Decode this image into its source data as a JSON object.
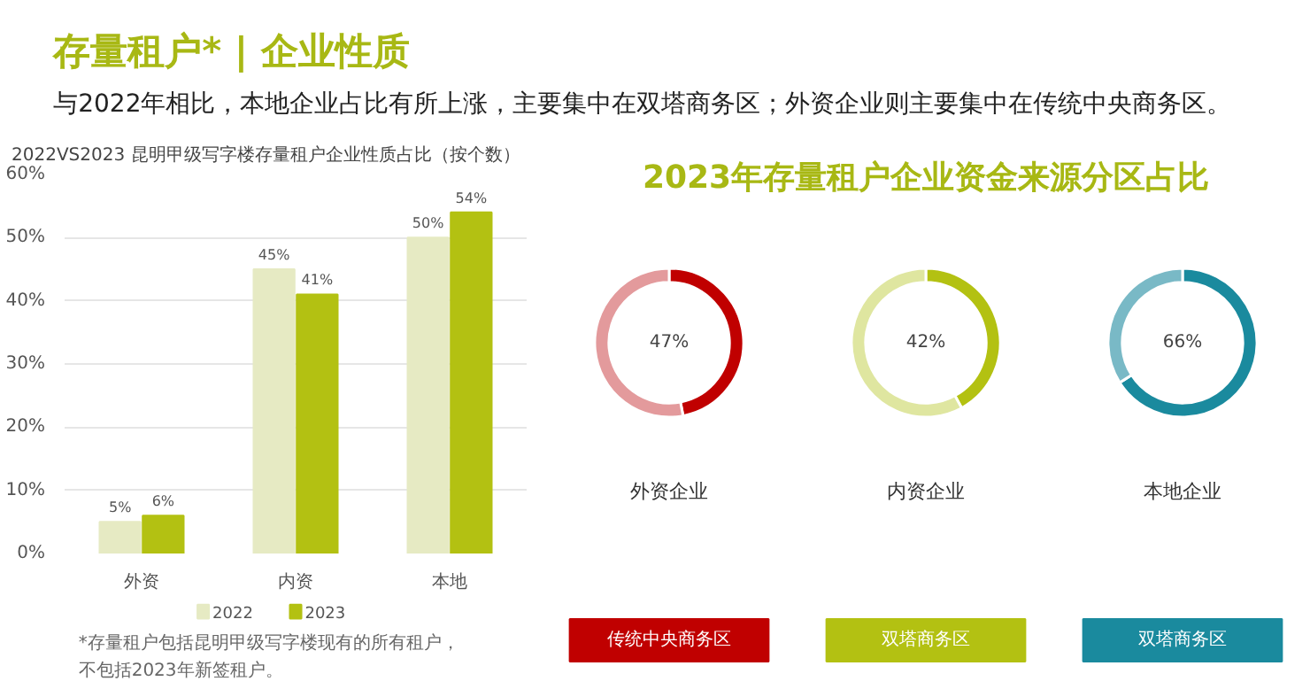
{
  "chart_data": [
    {
      "type": "other",
      "title": "存量租户*  |  企业性质",
      "subtitle": "与2022年相比，本地企业占比有所上涨，主要集中在双塔商务区；外资企业则主要集中在传统中央商务区。"
    },
    {
      "type": "bar",
      "title": "2022VS2023 昆明甲级写字楼存量租户企业性质占比（按个数）",
      "categories": [
        "外资",
        "内资",
        "本地"
      ],
      "series": [
        {
          "name": "2022",
          "color": "#e6eac3",
          "values": [
            5,
            45,
            50
          ],
          "value_labels": [
            "5%",
            "45%",
            "50%"
          ]
        },
        {
          "name": "2023",
          "color": "#b3c112",
          "values": [
            6,
            41,
            54
          ],
          "value_labels": [
            "6%",
            "41%",
            "54%"
          ]
        }
      ],
      "ylim": [
        0,
        60
      ],
      "yticks": [
        {
          "value": 0,
          "label": "0%"
        },
        {
          "value": 10,
          "label": "10%"
        },
        {
          "value": 20,
          "label": "20%"
        },
        {
          "value": 30,
          "label": "30%"
        },
        {
          "value": 40,
          "label": "40%"
        },
        {
          "value": 50,
          "label": "50%"
        },
        {
          "value": 60,
          "label": "60%"
        }
      ],
      "grid": "y",
      "legend": "bottom",
      "annotations": [
        "*存量租户包括昆明甲级写字楼现有的所有租户，不包括2023年新签租户。"
      ]
    },
    {
      "type": "other",
      "title": "2023年存量租户企业资金来源分区占比"
    },
    {
      "type": "donut",
      "title": "外资企业",
      "categories": [
        null,
        null
      ],
      "values": [
        47,
        53
      ],
      "colors": [
        "#c00000",
        "#e39a9c"
      ],
      "value_labels": [
        "47%",
        null
      ],
      "annotations": [
        "传统中央商务区"
      ]
    },
    {
      "type": "donut",
      "title": "内资企业",
      "categories": [
        null,
        null
      ],
      "values": [
        42,
        58
      ],
      "colors": [
        "#b3c112",
        "#dfe6a0"
      ],
      "value_labels": [
        "42%",
        null
      ],
      "annotations": [
        "双塔商务区"
      ]
    },
    {
      "type": "donut",
      "title": "本地企业",
      "categories": [
        null,
        null
      ],
      "values": [
        66,
        34
      ],
      "colors": [
        "#1a8a9e",
        "#79b9c6"
      ],
      "value_labels": [
        "66%",
        null
      ],
      "annotations": [
        "双塔商务区"
      ]
    }
  ]
}
